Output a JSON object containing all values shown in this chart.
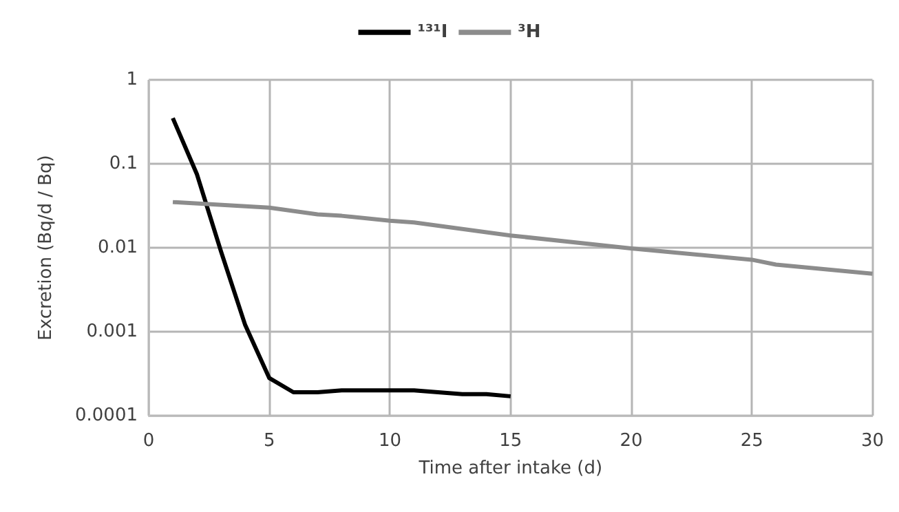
{
  "chart_data": {
    "type": "line",
    "xlabel": "Time after intake (d)",
    "ylabel": "Excretion (Bq/d / Bq)",
    "log": "y",
    "grid": true,
    "legend": "top",
    "marker": "none",
    "line_style": "solid",
    "xlim": [
      0,
      30
    ],
    "xticks": [
      0,
      5,
      10,
      15,
      20,
      25,
      30
    ],
    "ylim": [
      0.0001,
      1
    ],
    "yticks": [
      0.0001,
      0.001,
      0.01,
      0.1,
      1
    ],
    "series": [
      {
        "name": "¹³¹I",
        "color": "#000000",
        "x": [
          1,
          2,
          3,
          4,
          5,
          6,
          7,
          8,
          9,
          10,
          11,
          12,
          13,
          14,
          15
        ],
        "values": [
          0.35,
          0.075,
          0.009,
          0.0012,
          0.00028,
          0.00019,
          0.00019,
          0.0002,
          0.0002,
          0.0002,
          0.0002,
          0.00019,
          0.00018,
          0.00018,
          0.00017
        ]
      },
      {
        "name": "³H",
        "color": "#8c8c8c",
        "x": [
          1,
          5,
          7,
          8,
          10,
          11,
          15,
          20,
          25,
          26,
          30
        ],
        "values": [
          0.035,
          0.03,
          0.025,
          0.024,
          0.021,
          0.02,
          0.014,
          0.0098,
          0.0072,
          0.0063,
          0.0049
        ]
      }
    ]
  }
}
